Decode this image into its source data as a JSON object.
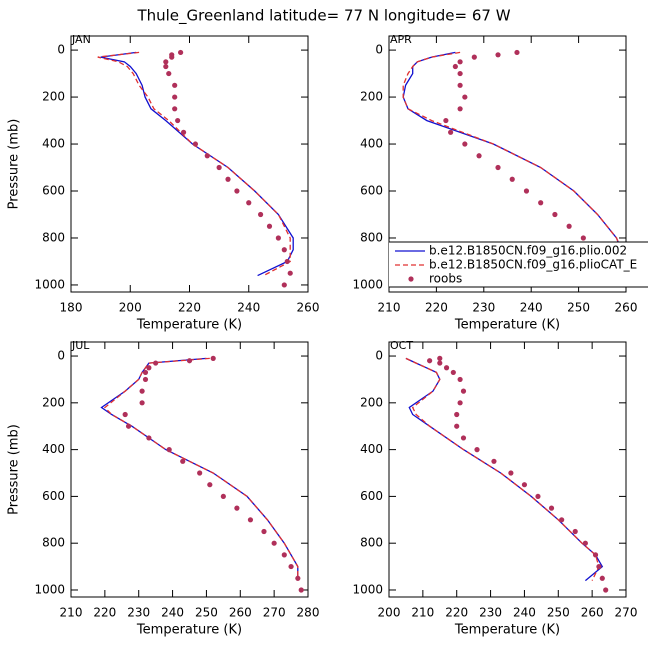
{
  "title": "Thule_Greenland  latitude= 77 N longitude= 67 W",
  "chart_data": [
    {
      "type": "line",
      "label": "JAN",
      "x_label": "Temperature (K)",
      "y_label": "Pressure (mb)",
      "xlim": [
        180,
        260
      ],
      "xticks": [
        180,
        200,
        220,
        240,
        260
      ],
      "ylim": [
        1030,
        -60
      ],
      "yticks": [
        0,
        200,
        400,
        600,
        800,
        1000
      ],
      "series": [
        {
          "color": "#1010d0",
          "style": "solid",
          "x": [
            202,
            190,
            198,
            200,
            202,
            204,
            205,
            207,
            212,
            221,
            233,
            242,
            250,
            255,
            255,
            253,
            243
          ],
          "y": [
            10,
            30,
            50,
            70,
            100,
            150,
            200,
            250,
            300,
            400,
            500,
            600,
            700,
            800,
            850,
            900,
            960
          ]
        },
        {
          "color": "#e03030",
          "style": "dashed",
          "x": [
            203,
            189,
            196,
            199,
            201,
            203,
            206,
            208,
            213,
            221,
            233,
            242,
            250,
            254,
            254,
            254,
            245
          ],
          "y": [
            10,
            30,
            50,
            70,
            100,
            150,
            200,
            250,
            300,
            400,
            500,
            600,
            700,
            800,
            850,
            900,
            960
          ]
        },
        {
          "color": "#b0305a",
          "style": "dots",
          "x": [
            217,
            214,
            214,
            212,
            212,
            213,
            215,
            215,
            215,
            216,
            218,
            222,
            226,
            230,
            233,
            236,
            240,
            244,
            247,
            250,
            252,
            253,
            254,
            252
          ],
          "y": [
            10,
            20,
            30,
            50,
            70,
            100,
            150,
            200,
            250,
            300,
            350,
            400,
            450,
            500,
            550,
            600,
            650,
            700,
            750,
            800,
            850,
            900,
            950,
            1000
          ]
        }
      ]
    },
    {
      "type": "line",
      "label": "APR",
      "x_label": "Temperature (K)",
      "xlim": [
        210,
        260
      ],
      "xticks": [
        210,
        220,
        230,
        240,
        250,
        260
      ],
      "ylim": [
        1030,
        -60
      ],
      "yticks": [
        0,
        200,
        400,
        600,
        800,
        1000
      ],
      "series": [
        {
          "name": "b.e12.B1850CN.f09_g16.plio.002",
          "color": "#1010d0",
          "style": "solid",
          "x": [
            224,
            219,
            216,
            215,
            215,
            213.5,
            213,
            214,
            218,
            232,
            242,
            249,
            254,
            258,
            259,
            259,
            257
          ],
          "y": [
            10,
            30,
            50,
            70,
            100,
            150,
            200,
            250,
            300,
            400,
            500,
            600,
            700,
            800,
            850,
            900,
            960
          ]
        },
        {
          "name": "b.e12.B1850CN.f09_g16.plioCAT_E",
          "color": "#e03030",
          "style": "dashed",
          "x": [
            225,
            219,
            216,
            215,
            214,
            213,
            213,
            214,
            219,
            232,
            242,
            249,
            254,
            258,
            259,
            260,
            258
          ],
          "y": [
            10,
            30,
            50,
            70,
            100,
            150,
            200,
            250,
            300,
            400,
            500,
            600,
            700,
            800,
            850,
            900,
            960
          ]
        },
        {
          "name": "roobs",
          "color": "#b0305a",
          "style": "dots",
          "x": [
            237,
            233,
            228,
            225,
            224,
            225,
            225,
            226,
            225,
            222,
            223,
            226,
            229,
            233,
            236,
            239,
            242,
            245,
            248,
            251,
            253,
            254,
            256,
            257
          ],
          "y": [
            10,
            20,
            30,
            50,
            70,
            100,
            150,
            200,
            250,
            300,
            350,
            400,
            450,
            500,
            550,
            600,
            650,
            700,
            750,
            800,
            850,
            900,
            950,
            1000
          ]
        }
      ]
    },
    {
      "type": "line",
      "label": "JUL",
      "x_label": "Temperature (K)",
      "y_label": "Pressure (mb)",
      "xlim": [
        210,
        280
      ],
      "xticks": [
        210,
        220,
        230,
        240,
        250,
        260,
        270,
        280
      ],
      "ylim": [
        1030,
        -60
      ],
      "yticks": [
        0,
        200,
        400,
        600,
        800,
        1000
      ],
      "series": [
        {
          "color": "#1010d0",
          "style": "solid",
          "x": [
            250,
            233,
            232,
            231,
            230,
            226,
            219,
            222,
            228,
            238,
            252,
            262,
            268,
            273,
            275,
            277,
            277
          ],
          "y": [
            10,
            30,
            50,
            70,
            100,
            150,
            220,
            250,
            300,
            400,
            500,
            600,
            700,
            800,
            850,
            900,
            960
          ]
        },
        {
          "color": "#e03030",
          "style": "dashed",
          "x": [
            251,
            233,
            232,
            231,
            230,
            226,
            220,
            222,
            228,
            238,
            252,
            262,
            268,
            273,
            275,
            277,
            277
          ],
          "y": [
            10,
            30,
            50,
            70,
            100,
            150,
            220,
            250,
            300,
            400,
            500,
            600,
            700,
            800,
            850,
            900,
            960
          ]
        },
        {
          "color": "#b0305a",
          "style": "dots",
          "x": [
            252,
            245,
            235,
            233,
            232,
            232,
            231,
            231,
            226,
            227,
            233,
            239,
            243,
            248,
            251,
            255,
            259,
            263,
            267,
            270,
            273,
            275,
            277,
            278
          ],
          "y": [
            10,
            20,
            30,
            50,
            70,
            100,
            150,
            200,
            250,
            300,
            350,
            400,
            450,
            500,
            550,
            600,
            650,
            700,
            750,
            800,
            850,
            900,
            950,
            1000
          ]
        }
      ]
    },
    {
      "type": "line",
      "label": "OCT",
      "x_label": "Temperature (K)",
      "xlim": [
        200,
        270
      ],
      "xticks": [
        200,
        210,
        220,
        230,
        240,
        250,
        260,
        270
      ],
      "ylim": [
        1030,
        -60
      ],
      "yticks": [
        0,
        200,
        400,
        600,
        800,
        1000
      ],
      "series": [
        {
          "color": "#1010d0",
          "style": "solid",
          "x": [
            205,
            208,
            211,
            214,
            215,
            213,
            206,
            207,
            212,
            222,
            233,
            242,
            250,
            257,
            261,
            263,
            258
          ],
          "y": [
            10,
            30,
            50,
            70,
            100,
            150,
            220,
            250,
            300,
            400,
            500,
            600,
            700,
            800,
            850,
            900,
            960
          ]
        },
        {
          "color": "#e03030",
          "style": "dashed",
          "x": [
            205,
            208,
            211,
            214,
            215,
            213,
            207,
            208,
            212,
            222,
            233,
            242,
            250,
            257,
            261,
            262,
            260
          ],
          "y": [
            10,
            30,
            50,
            70,
            100,
            150,
            220,
            250,
            300,
            400,
            500,
            600,
            700,
            800,
            850,
            900,
            960
          ]
        },
        {
          "color": "#b0305a",
          "style": "dots",
          "x": [
            215,
            212,
            215,
            217,
            219,
            221,
            222,
            221,
            220,
            220,
            222,
            226,
            231,
            236,
            240,
            244,
            248,
            251,
            255,
            258,
            261,
            262,
            263,
            264
          ],
          "y": [
            10,
            20,
            30,
            50,
            70,
            100,
            150,
            200,
            250,
            300,
            350,
            400,
            450,
            500,
            550,
            600,
            650,
            700,
            750,
            800,
            850,
            900,
            950,
            1000
          ]
        }
      ]
    }
  ]
}
